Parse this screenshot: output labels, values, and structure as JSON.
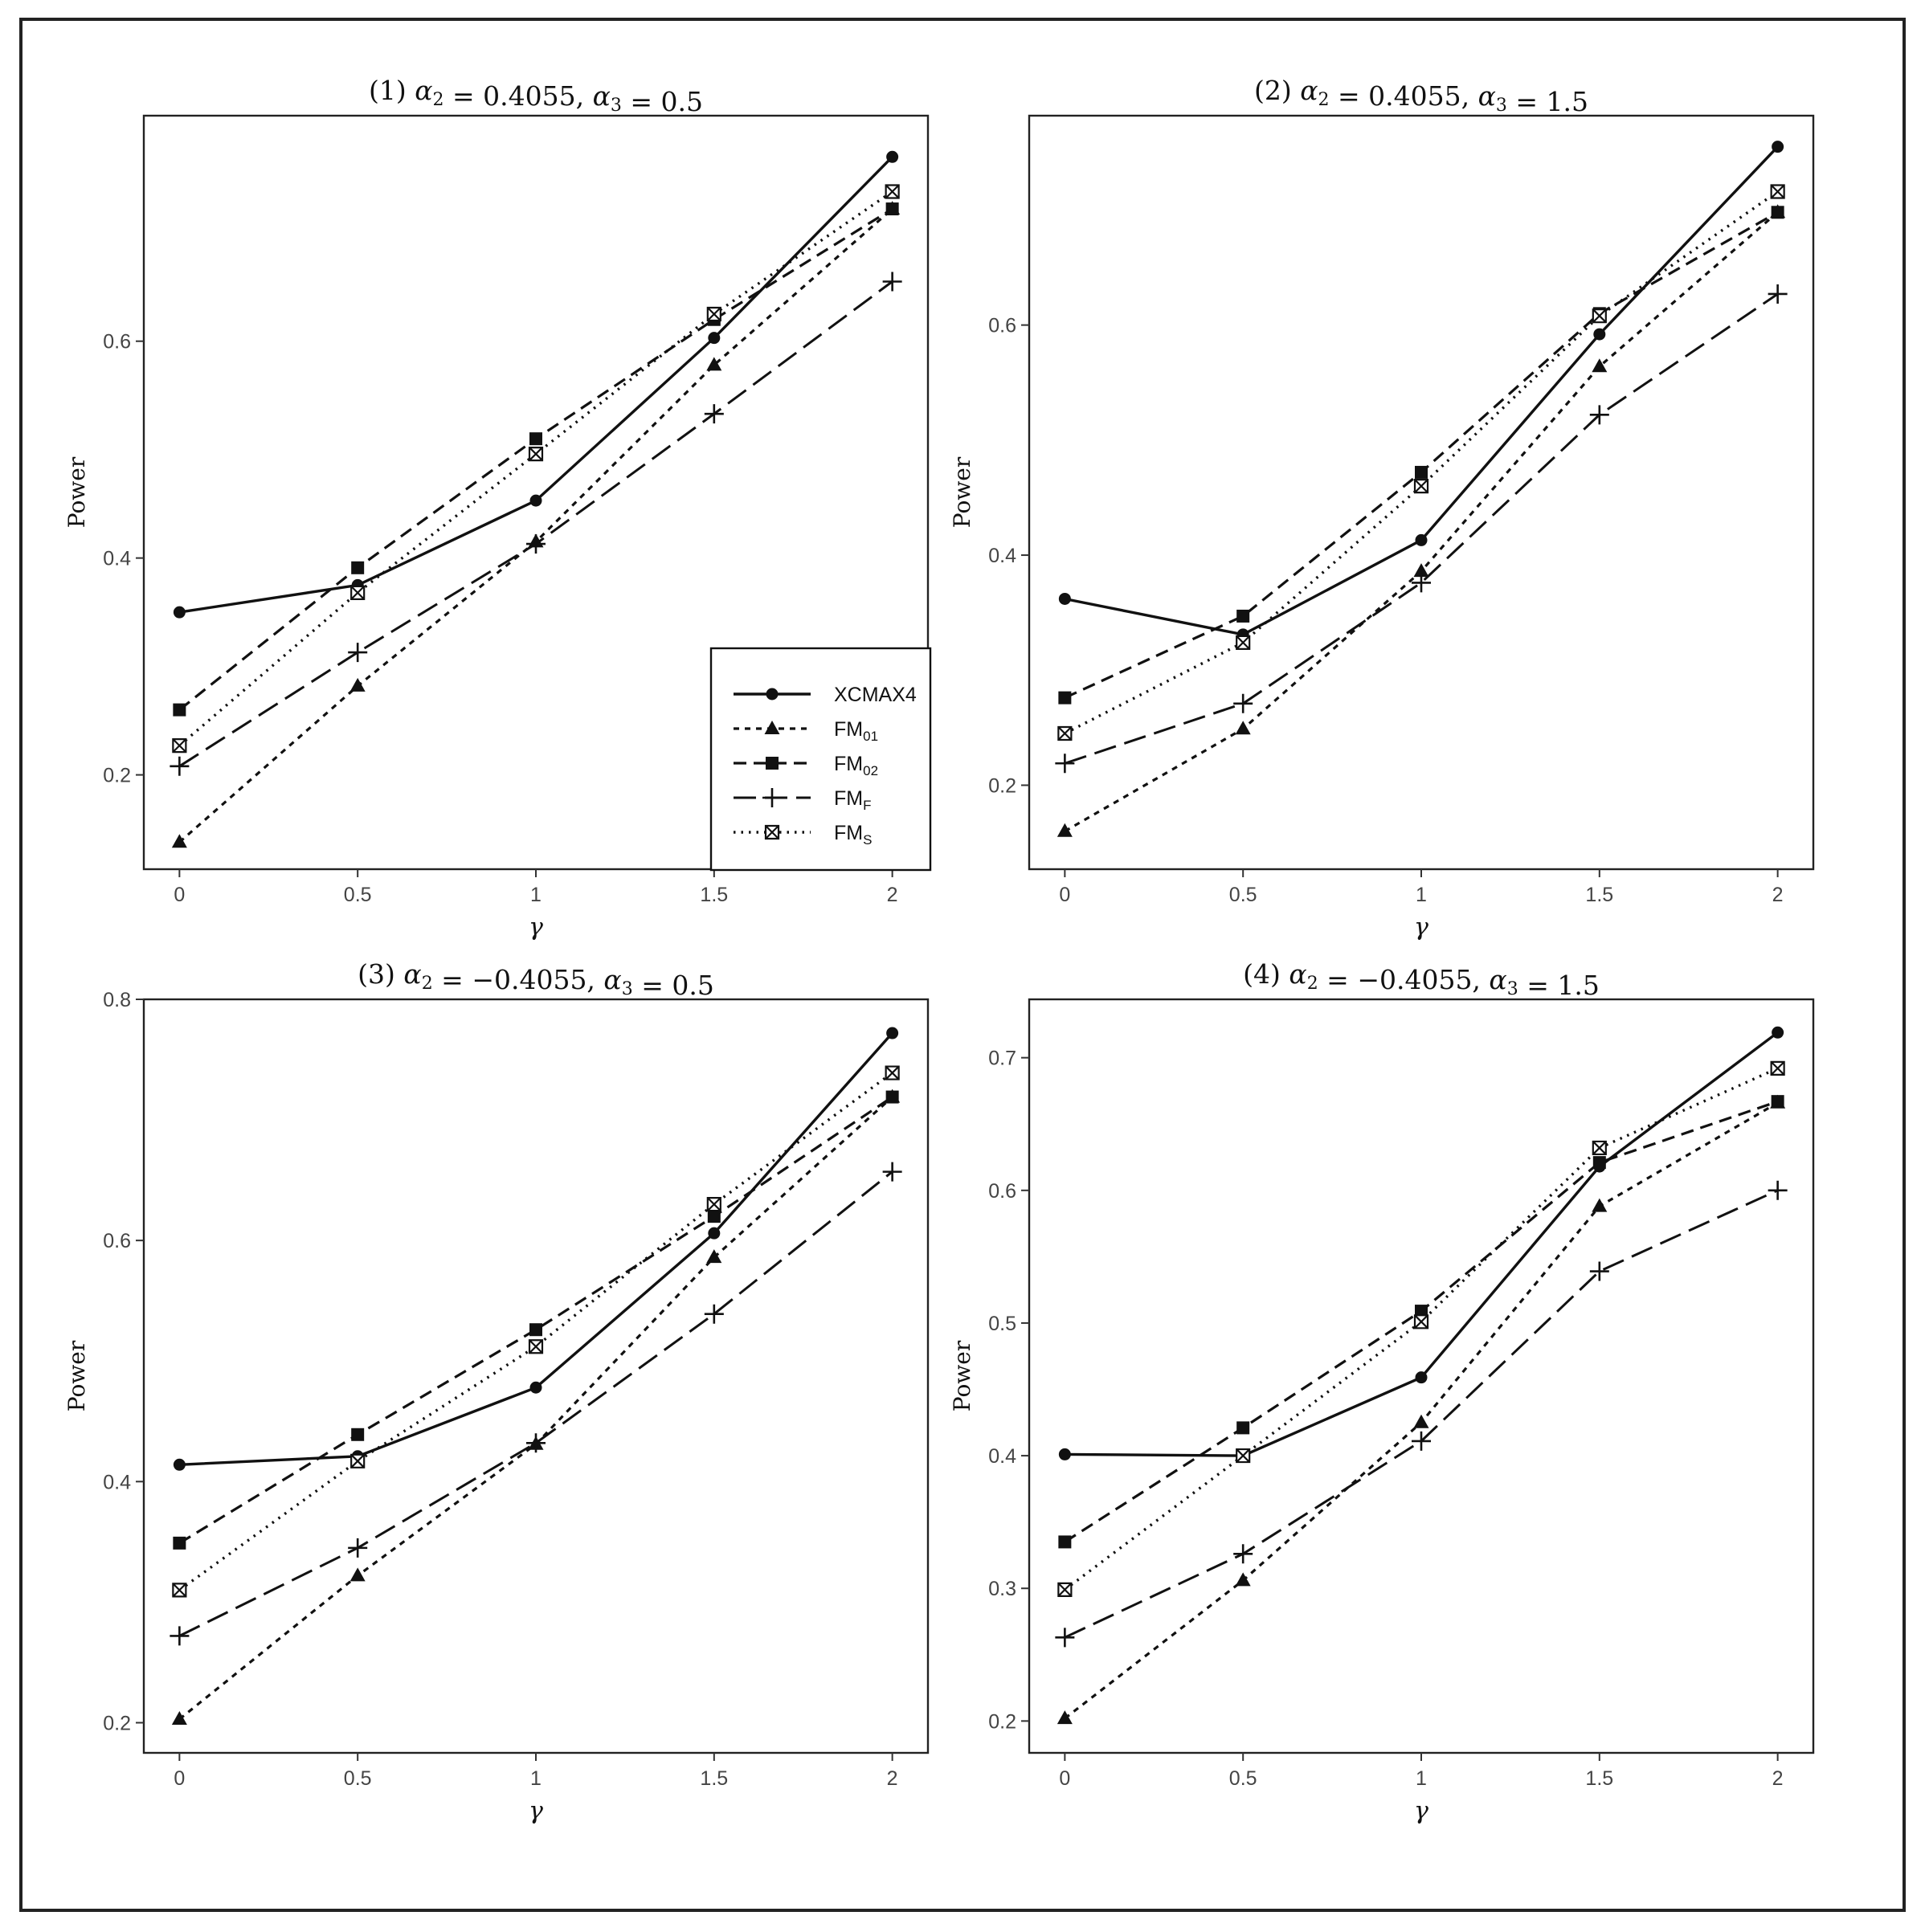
{
  "legend": {
    "placement": "bottom-right of panel 1",
    "entries": [
      {
        "name": "XCMAX4",
        "sub": "",
        "dash": "solid",
        "marker": "circle"
      },
      {
        "name": "FM",
        "sub": "01",
        "dash": "dotted",
        "marker": "triangle"
      },
      {
        "name": "FM",
        "sub": "02",
        "dash": "dashed",
        "marker": "square"
      },
      {
        "name": "FM",
        "sub": "F",
        "dash": "longdash",
        "marker": "plus"
      },
      {
        "name": "FM",
        "sub": "S",
        "dash": "fine-dotted",
        "marker": "boxed-x"
      }
    ]
  },
  "chart_data": [
    {
      "type": "line",
      "title_num": "(1)",
      "title_a2": "0.4055",
      "title_a3": "0.5",
      "xlabel": "γ",
      "ylabel": "Power",
      "x": [
        0,
        0.5,
        1,
        1.5,
        2
      ],
      "x_tick_labels": [
        "0",
        "0.5",
        "1",
        "1.5",
        "2"
      ],
      "y_ticks": [
        0.2,
        0.4,
        0.6
      ],
      "y_tick_labels": [
        "0.2",
        "0.4",
        "0.6"
      ],
      "xlim": [
        -0.1,
        2.1
      ],
      "ylim": [
        0.113,
        0.808
      ],
      "grid": false,
      "series": [
        {
          "name": "XCMAX4",
          "values": [
            0.35,
            0.375,
            0.453,
            0.603,
            0.77
          ]
        },
        {
          "name": "FM01",
          "values": [
            0.138,
            0.282,
            0.415,
            0.578,
            0.722
          ]
        },
        {
          "name": "FM02",
          "values": [
            0.26,
            0.391,
            0.51,
            0.62,
            0.722
          ]
        },
        {
          "name": "FMF",
          "values": [
            0.208,
            0.313,
            0.413,
            0.533,
            0.655
          ]
        },
        {
          "name": "FMS",
          "values": [
            0.227,
            0.368,
            0.496,
            0.625,
            0.738
          ]
        }
      ]
    },
    {
      "type": "line",
      "title_num": "(2)",
      "title_a2": "0.4055",
      "title_a3": "1.5",
      "xlabel": "γ",
      "ylabel": "Power",
      "x": [
        0,
        0.5,
        1,
        1.5,
        2
      ],
      "x_tick_labels": [
        "0",
        "0.5",
        "1",
        "1.5",
        "2"
      ],
      "y_ticks": [
        0.2,
        0.4,
        0.6
      ],
      "y_tick_labels": [
        "0.2",
        "0.4",
        "0.6"
      ],
      "xlim": [
        -0.1,
        2.1
      ],
      "ylim": [
        0.127,
        0.782
      ],
      "grid": false,
      "series": [
        {
          "name": "XCMAX4",
          "values": [
            0.362,
            0.331,
            0.413,
            0.592,
            0.755
          ]
        },
        {
          "name": "FM01",
          "values": [
            0.16,
            0.249,
            0.386,
            0.564,
            0.698
          ]
        },
        {
          "name": "FM02",
          "values": [
            0.276,
            0.347,
            0.472,
            0.61,
            0.698
          ]
        },
        {
          "name": "FMF",
          "values": [
            0.219,
            0.271,
            0.376,
            0.522,
            0.627
          ]
        },
        {
          "name": "FMS",
          "values": [
            0.245,
            0.324,
            0.46,
            0.608,
            0.716
          ]
        }
      ]
    },
    {
      "type": "line",
      "title_num": "(3)",
      "title_a2": "−0.4055",
      "title_a3": "0.5",
      "xlabel": "γ",
      "ylabel": "Power",
      "x": [
        0,
        0.5,
        1,
        1.5,
        2
      ],
      "x_tick_labels": [
        "0",
        "0.5",
        "1",
        "1.5",
        "2"
      ],
      "y_ticks": [
        0.2,
        0.4,
        0.6,
        0.8
      ],
      "y_tick_labels": [
        "0.2",
        "0.4",
        "0.6",
        "0.8"
      ],
      "xlim": [
        -0.1,
        2.1
      ],
      "ylim": [
        0.175,
        0.8
      ],
      "grid": false,
      "series": [
        {
          "name": "XCMAX4",
          "values": [
            0.414,
            0.421,
            0.478,
            0.606,
            0.772
          ]
        },
        {
          "name": "FM01",
          "values": [
            0.203,
            0.322,
            0.431,
            0.586,
            0.719
          ]
        },
        {
          "name": "FM02",
          "values": [
            0.349,
            0.439,
            0.526,
            0.62,
            0.719
          ]
        },
        {
          "name": "FMF",
          "values": [
            0.272,
            0.345,
            0.432,
            0.539,
            0.657
          ]
        },
        {
          "name": "FMS",
          "values": [
            0.31,
            0.417,
            0.512,
            0.63,
            0.739
          ]
        }
      ]
    },
    {
      "type": "line",
      "title_num": "(4)",
      "title_a2": "−0.4055",
      "title_a3": "1.5",
      "xlabel": "γ",
      "ylabel": "Power",
      "x": [
        0,
        0.5,
        1,
        1.5,
        2
      ],
      "x_tick_labels": [
        "0",
        "0.5",
        "1",
        "1.5",
        "2"
      ],
      "y_ticks": [
        0.2,
        0.3,
        0.4,
        0.5,
        0.6,
        0.7
      ],
      "y_tick_labels": [
        "0.2",
        "0.3",
        "0.4",
        "0.5",
        "0.6",
        "0.7"
      ],
      "xlim": [
        -0.1,
        2.1
      ],
      "ylim": [
        0.176,
        0.744
      ],
      "grid": false,
      "series": [
        {
          "name": "XCMAX4",
          "values": [
            0.401,
            0.4,
            0.459,
            0.618,
            0.719
          ]
        },
        {
          "name": "FM01",
          "values": [
            0.202,
            0.306,
            0.425,
            0.588,
            0.666
          ]
        },
        {
          "name": "FM02",
          "values": [
            0.335,
            0.421,
            0.509,
            0.621,
            0.667
          ]
        },
        {
          "name": "FMF",
          "values": [
            0.263,
            0.326,
            0.411,
            0.539,
            0.6
          ]
        },
        {
          "name": "FMS",
          "values": [
            0.299,
            0.4,
            0.501,
            0.632,
            0.692
          ]
        }
      ]
    }
  ]
}
